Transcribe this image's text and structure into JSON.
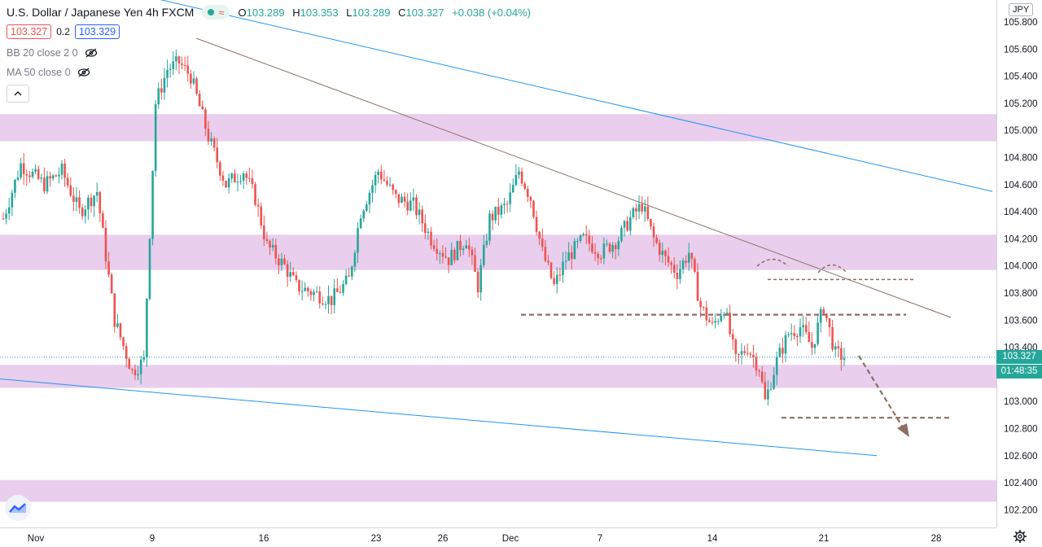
{
  "header": {
    "symbol": "U.S. Dollar / Japanese Yen  4h  FXCM",
    "open_label": "O",
    "open": "103.289",
    "high_label": "H",
    "high": "103.353",
    "low_label": "L",
    "low": "103.289",
    "close_label": "C",
    "close": "103.327",
    "change": "+0.038 (+0.04%)"
  },
  "quote": {
    "sell": "103.327",
    "spread": "0.2",
    "buy": "103.329"
  },
  "indicators": [
    {
      "label": "BB 20 close 2 0"
    },
    {
      "label": "MA 50 close 0"
    }
  ],
  "currency": "JPY",
  "last_price_label": "103.327",
  "countdown": "01:48:35",
  "colors": {
    "up": "#26a69a",
    "down": "#ef5350",
    "zone": "#e1bee7",
    "channel": "#2196f3",
    "trend": "#8d6e63"
  },
  "chart_data": {
    "type": "candlestick",
    "title": "U.S. Dollar / Japanese Yen  4h  FXCM",
    "x_ticks": [
      "Nov",
      "9",
      "16",
      "23",
      "26",
      "Dec",
      "7",
      "14",
      "21",
      "28"
    ],
    "y_ticks": [
      "105.800",
      "105.600",
      "105.400",
      "105.200",
      "105.000",
      "104.800",
      "104.600",
      "104.400",
      "104.200",
      "104.000",
      "103.800",
      "103.600",
      "103.400",
      "103.200",
      "103.000",
      "102.800",
      "102.600",
      "102.400",
      "102.200"
    ],
    "ylim": [
      102.12,
      105.88
    ],
    "last_price": 103.327,
    "anchors": [
      [
        0,
        104.35
      ],
      [
        6,
        104.75
      ],
      [
        14,
        104.6
      ],
      [
        20,
        104.7
      ],
      [
        26,
        104.4
      ],
      [
        32,
        104.55
      ],
      [
        38,
        103.6
      ],
      [
        44,
        103.22
      ],
      [
        48,
        103.3
      ],
      [
        52,
        105.2
      ],
      [
        56,
        105.45
      ],
      [
        60,
        105.5
      ],
      [
        64,
        105.4
      ],
      [
        70,
        104.95
      ],
      [
        76,
        104.6
      ],
      [
        82,
        104.7
      ],
      [
        86,
        104.5
      ],
      [
        90,
        104.15
      ],
      [
        96,
        104.0
      ],
      [
        100,
        103.85
      ],
      [
        106,
        103.8
      ],
      [
        112,
        103.75
      ],
      [
        118,
        103.9
      ],
      [
        122,
        104.4
      ],
      [
        128,
        104.7
      ],
      [
        134,
        104.5
      ],
      [
        140,
        104.45
      ],
      [
        146,
        104.2
      ],
      [
        152,
        104.05
      ],
      [
        158,
        104.2
      ],
      [
        162,
        103.85
      ],
      [
        166,
        104.35
      ],
      [
        172,
        104.45
      ],
      [
        176,
        104.7
      ],
      [
        180,
        104.5
      ],
      [
        184,
        104.1
      ],
      [
        188,
        103.85
      ],
      [
        192,
        104.05
      ],
      [
        198,
        104.2
      ],
      [
        204,
        104.1
      ],
      [
        210,
        104.2
      ],
      [
        214,
        104.35
      ],
      [
        218,
        104.45
      ],
      [
        222,
        104.2
      ],
      [
        226,
        104.05
      ],
      [
        230,
        103.95
      ],
      [
        234,
        104.1
      ],
      [
        238,
        103.7
      ],
      [
        242,
        103.55
      ],
      [
        246,
        103.7
      ],
      [
        250,
        103.3
      ],
      [
        254,
        103.4
      ],
      [
        258,
        103.25
      ],
      [
        260,
        103.0
      ],
      [
        264,
        103.3
      ],
      [
        268,
        103.5
      ],
      [
        272,
        103.55
      ],
      [
        276,
        103.4
      ],
      [
        280,
        103.7
      ],
      [
        284,
        103.35
      ],
      [
        287,
        103.33
      ]
    ],
    "zones": [
      {
        "from": 104.92,
        "to": 105.12
      },
      {
        "from": 103.97,
        "to": 104.23
      },
      {
        "from": 103.1,
        "to": 103.27
      },
      {
        "from": 102.26,
        "to": 102.42
      }
    ],
    "channel_lines": [
      {
        "from": [
          "Nov",
          106.3
        ],
        "to": [
          "Dec",
          104.55
        ]
      },
      {
        "from": [
          "Nov",
          103.19
        ],
        "to": [
          "Dec",
          102.6
        ]
      }
    ],
    "trend_line": {
      "from": [
        12.5,
        105.68
      ],
      "to": [
        26.7,
        103.62
      ]
    },
    "levels": [
      {
        "price": 103.64,
        "from": 23.4,
        "to": 26.6
      },
      {
        "price": 103.9,
        "from": 26.0,
        "to": 26.6
      },
      {
        "price": 102.88,
        "from": 26.1,
        "to": 26.7
      }
    ],
    "projection": {
      "from": [
        22.5,
        103.35
      ],
      "to": [
        26.2,
        102.78
      ]
    }
  }
}
